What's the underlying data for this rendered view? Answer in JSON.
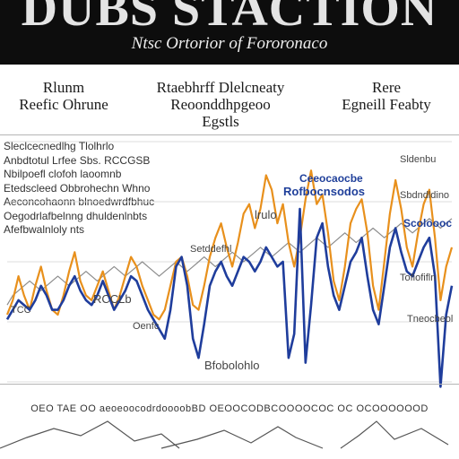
{
  "header": {
    "title": "DUBS STACTION",
    "subtitle": "Ntsc Ortorior of Fororonaco"
  },
  "columns": [
    {
      "lines": [
        "Rlunm",
        "Reefic Ohrune"
      ]
    },
    {
      "lines": [
        "Rtaebhrff Dlelcneaty",
        "Reoonddhpgeoo",
        "Egstls"
      ]
    },
    {
      "lines": [
        "Rere",
        "Egneill Feabty"
      ]
    }
  ],
  "notes": [
    "Sleclcecnedlhg Tlolhrlo",
    "Anbdtotul Lrfee Sbs. RCCGSB",
    "Nbilpoefl clofoh laoomnb",
    "Etedscleed Obbrohechn Whno",
    "Aeconcohaonn blnoedwrdfbhuc",
    "Oegodrlafbelnng dhuldenlnbts",
    "Afefbwalnloly nts"
  ],
  "labels": {
    "lrulo": "lrulo",
    "sectn": "Setddefhl",
    "rcc": "RCCLb",
    "tcc": "TCC",
    "oenfc": "Oenfc",
    "bottom": "Bfobolohlo",
    "blue_a": "Ceeocaocbe",
    "blue_b": "Rofbocnsodos",
    "right_a": "Sldenbu",
    "right_b": "Sbdndldino",
    "right_c": "Scoloooc",
    "right_d": "Tofiofifln",
    "right_e": "Tneocbeol"
  },
  "footer": {
    "text": "OEO TAE OO aeoeoocodrdoooobBD OEOOCODBCOOOOCOC OC OCOOOOOOD"
  },
  "colors": {
    "orange": "#e8901c",
    "blue": "#1f3d9c",
    "red": "#b8481c",
    "grey": "#8c8c8c"
  },
  "chart_data": {
    "type": "line",
    "x": [
      0,
      1,
      2,
      3,
      4,
      5,
      6,
      7,
      8,
      9,
      10,
      11,
      12,
      13,
      14,
      15,
      16,
      17,
      18,
      19,
      20,
      21,
      22,
      23,
      24,
      25,
      26,
      27,
      28,
      29,
      30,
      31,
      32,
      33,
      34,
      35,
      36,
      37,
      38,
      39,
      40,
      41,
      42,
      43,
      44,
      45,
      46,
      47,
      48,
      49,
      50,
      51,
      52,
      53,
      54,
      55,
      56,
      57,
      58,
      59,
      60,
      61,
      62,
      63,
      64,
      65,
      66,
      67,
      68,
      69,
      70,
      71,
      72,
      73,
      74,
      75,
      76,
      77,
      78,
      79
    ],
    "series": [
      {
        "values": [
          28,
          34,
          44,
          36,
          30,
          40,
          48,
          38,
          30,
          28,
          36,
          46,
          54,
          42,
          36,
          34,
          40,
          46,
          38,
          30,
          36,
          44,
          52,
          48,
          40,
          34,
          28,
          26,
          30,
          40,
          50,
          52,
          44,
          32,
          30,
          40,
          52,
          60,
          66,
          56,
          48,
          58,
          70,
          74,
          64,
          72,
          86,
          80,
          66,
          74,
          58,
          48,
          60,
          76,
          88,
          74,
          78,
          62,
          42,
          34,
          48,
          66,
          72,
          76,
          62,
          40,
          30,
          50,
          70,
          84,
          72,
          56,
          48,
          62,
          74,
          80,
          60,
          34,
          48,
          56
        ]
      },
      {
        "values": [
          26,
          30,
          34,
          32,
          30,
          34,
          40,
          36,
          30,
          30,
          34,
          40,
          44,
          38,
          34,
          32,
          36,
          42,
          36,
          30,
          34,
          38,
          44,
          42,
          36,
          30,
          26,
          22,
          18,
          30,
          48,
          52,
          40,
          18,
          10,
          24,
          40,
          46,
          50,
          44,
          40,
          46,
          52,
          50,
          46,
          50,
          56,
          52,
          48,
          50,
          10,
          20,
          72,
          8,
          32,
          60,
          66,
          48,
          36,
          30,
          40,
          50,
          54,
          60,
          44,
          30,
          24,
          40,
          56,
          64,
          54,
          46,
          44,
          50,
          56,
          60,
          44,
          -2,
          28,
          40
        ]
      },
      {
        "values": [
          32,
          36,
          38,
          40,
          42,
          40,
          38,
          40,
          42,
          44,
          42,
          40,
          42,
          44,
          46,
          44,
          42,
          44,
          46,
          48,
          46,
          44,
          46,
          48,
          50,
          48,
          46,
          44,
          46,
          48,
          50,
          48,
          46,
          48,
          50,
          52,
          50,
          48,
          50,
          52,
          54,
          52,
          50,
          52,
          54,
          56,
          54,
          52,
          54,
          56,
          58,
          56,
          54,
          56,
          58,
          60,
          58,
          56,
          58,
          60,
          62,
          60,
          58,
          60,
          62,
          64,
          62,
          60,
          62,
          64,
          66,
          64,
          62,
          64,
          66,
          68,
          66,
          64,
          66,
          68
        ]
      }
    ],
    "ylim": [
      0,
      100
    ]
  }
}
